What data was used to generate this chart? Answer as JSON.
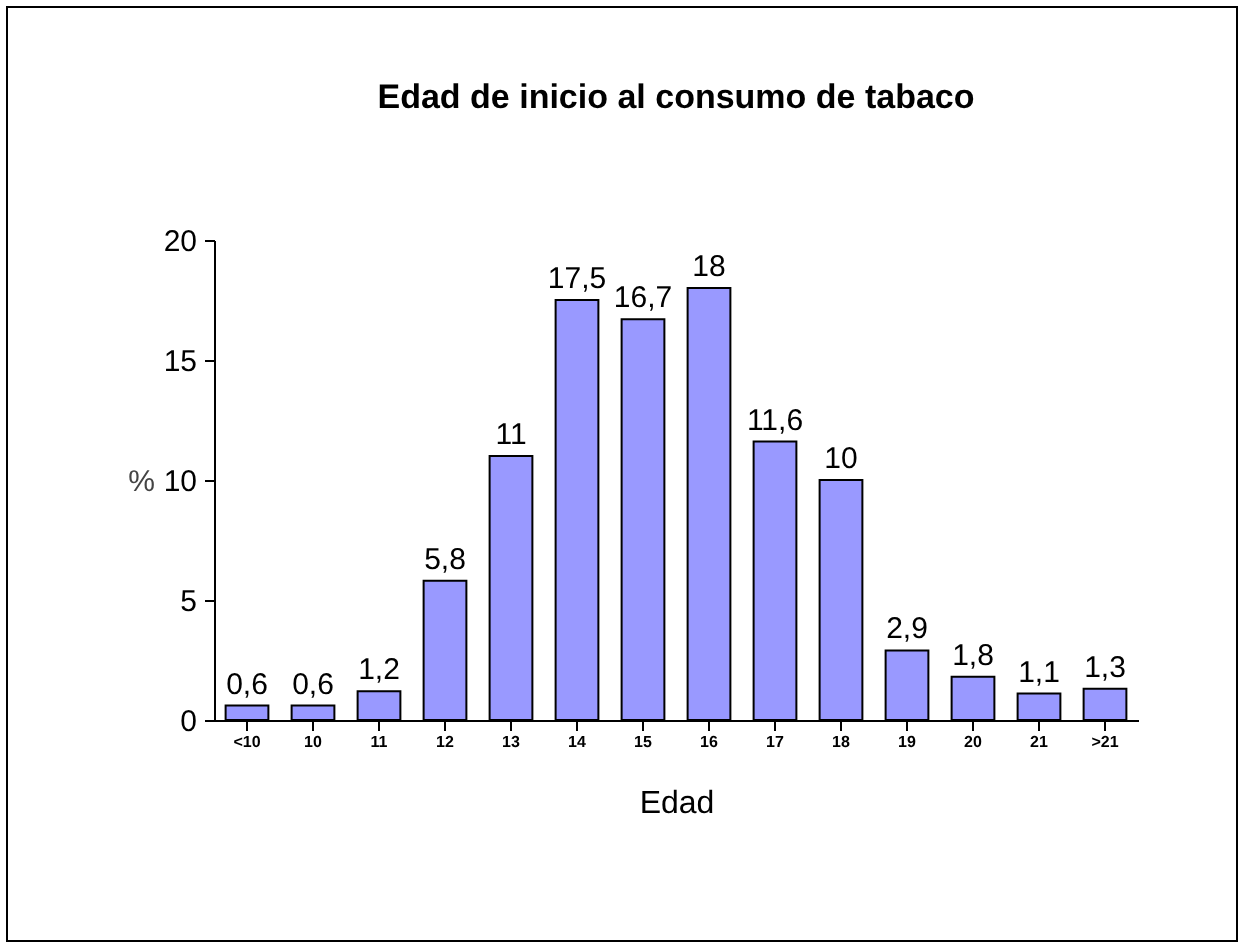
{
  "chart_data": {
    "type": "bar",
    "title": "Edad de inicio al consumo de tabaco",
    "xlabel": "Edad",
    "ylabel": "%",
    "categories": [
      "<10",
      "10",
      "11",
      "12",
      "13",
      "14",
      "15",
      "16",
      "17",
      "18",
      "19",
      "20",
      "21",
      ">21"
    ],
    "values": [
      0.6,
      0.6,
      1.2,
      5.8,
      11,
      17.5,
      16.7,
      18,
      11.6,
      10,
      2.9,
      1.8,
      1.1,
      1.3
    ],
    "value_labels": [
      "0,6",
      "0,6",
      "1,2",
      "5,8",
      "11",
      "17,5",
      "16,7",
      "18",
      "11,6",
      "10",
      "2,9",
      "1,8",
      "1,1",
      "1,3"
    ],
    "color": "#9999ff",
    "ylim": [
      0,
      20
    ],
    "yticks": [
      0,
      5,
      10,
      15,
      20
    ],
    "grid": false
  }
}
